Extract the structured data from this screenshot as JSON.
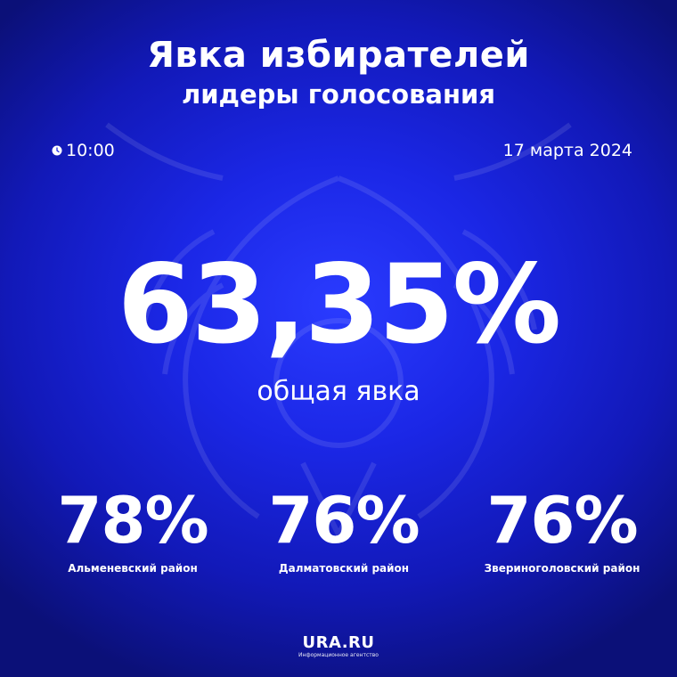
{
  "header": {
    "title": "Явка избирателей",
    "subtitle": "лидеры голосования"
  },
  "meta": {
    "time": "10:00",
    "date": "17 марта 2024",
    "clock_icon": "clock-icon"
  },
  "total": {
    "value": "63,35%",
    "caption": "общая явка"
  },
  "leaders": [
    {
      "value": "78%",
      "name": "Альменевский район"
    },
    {
      "value": "76%",
      "name": "Далматовский район"
    },
    {
      "value": "76%",
      "name": "Звериноголовский район"
    }
  ],
  "logo": {
    "main": "URA.RU",
    "sub": "Информационное агентство"
  },
  "colors": {
    "background_center": "#2a3bff",
    "background_edge": "#0b1078",
    "text": "#ffffff"
  }
}
